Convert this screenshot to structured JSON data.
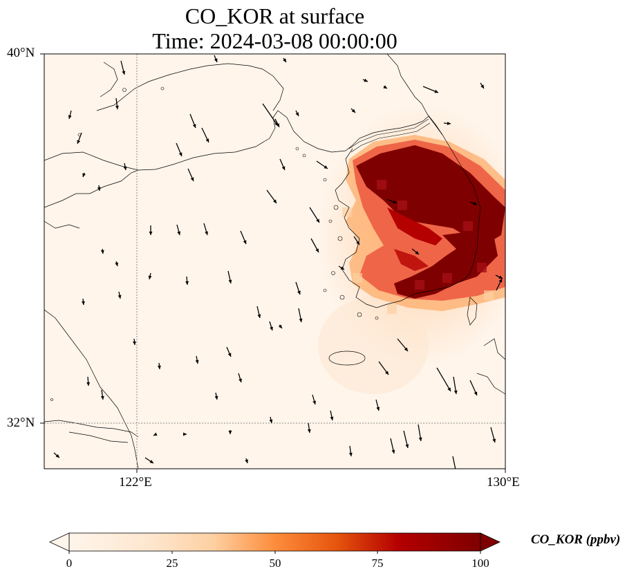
{
  "title": {
    "line1": "CO_KOR at surface",
    "line2": "Time: 2024-03-08 00:00:00"
  },
  "axes": {
    "lat_ticks": [
      "40°N",
      "32°N"
    ],
    "lon_ticks": [
      "122°E",
      "130°E"
    ],
    "lat_range": [
      31,
      40
    ],
    "lon_range": [
      120,
      130
    ]
  },
  "colorbar": {
    "label": "CO_KOR (ppbv)",
    "ticks": [
      "0",
      "25",
      "50",
      "75",
      "100"
    ],
    "range": [
      0,
      100
    ],
    "extend": "both",
    "colormap": [
      "#fff5eb",
      "#fdd0a2",
      "#fd8d3c",
      "#d94801",
      "#a50f15",
      "#7f0000"
    ]
  },
  "colors": {
    "coast": "#000000",
    "grid": "#888888",
    "vectors": "#000000",
    "background": "#fff5eb"
  },
  "chart_data": {
    "type": "heatmap",
    "title": "CO_KOR at surface",
    "subtitle": "Time: 2024-03-08 00:00:00",
    "xlabel": "",
    "ylabel": "",
    "units": "ppbv",
    "plume": "high CO_KOR (75–100 ppbv) over the Korean Peninsula (approx. 126.5–130°E, 34–38°N), decreasing to near 0 westward over the Yellow Sea"
  }
}
